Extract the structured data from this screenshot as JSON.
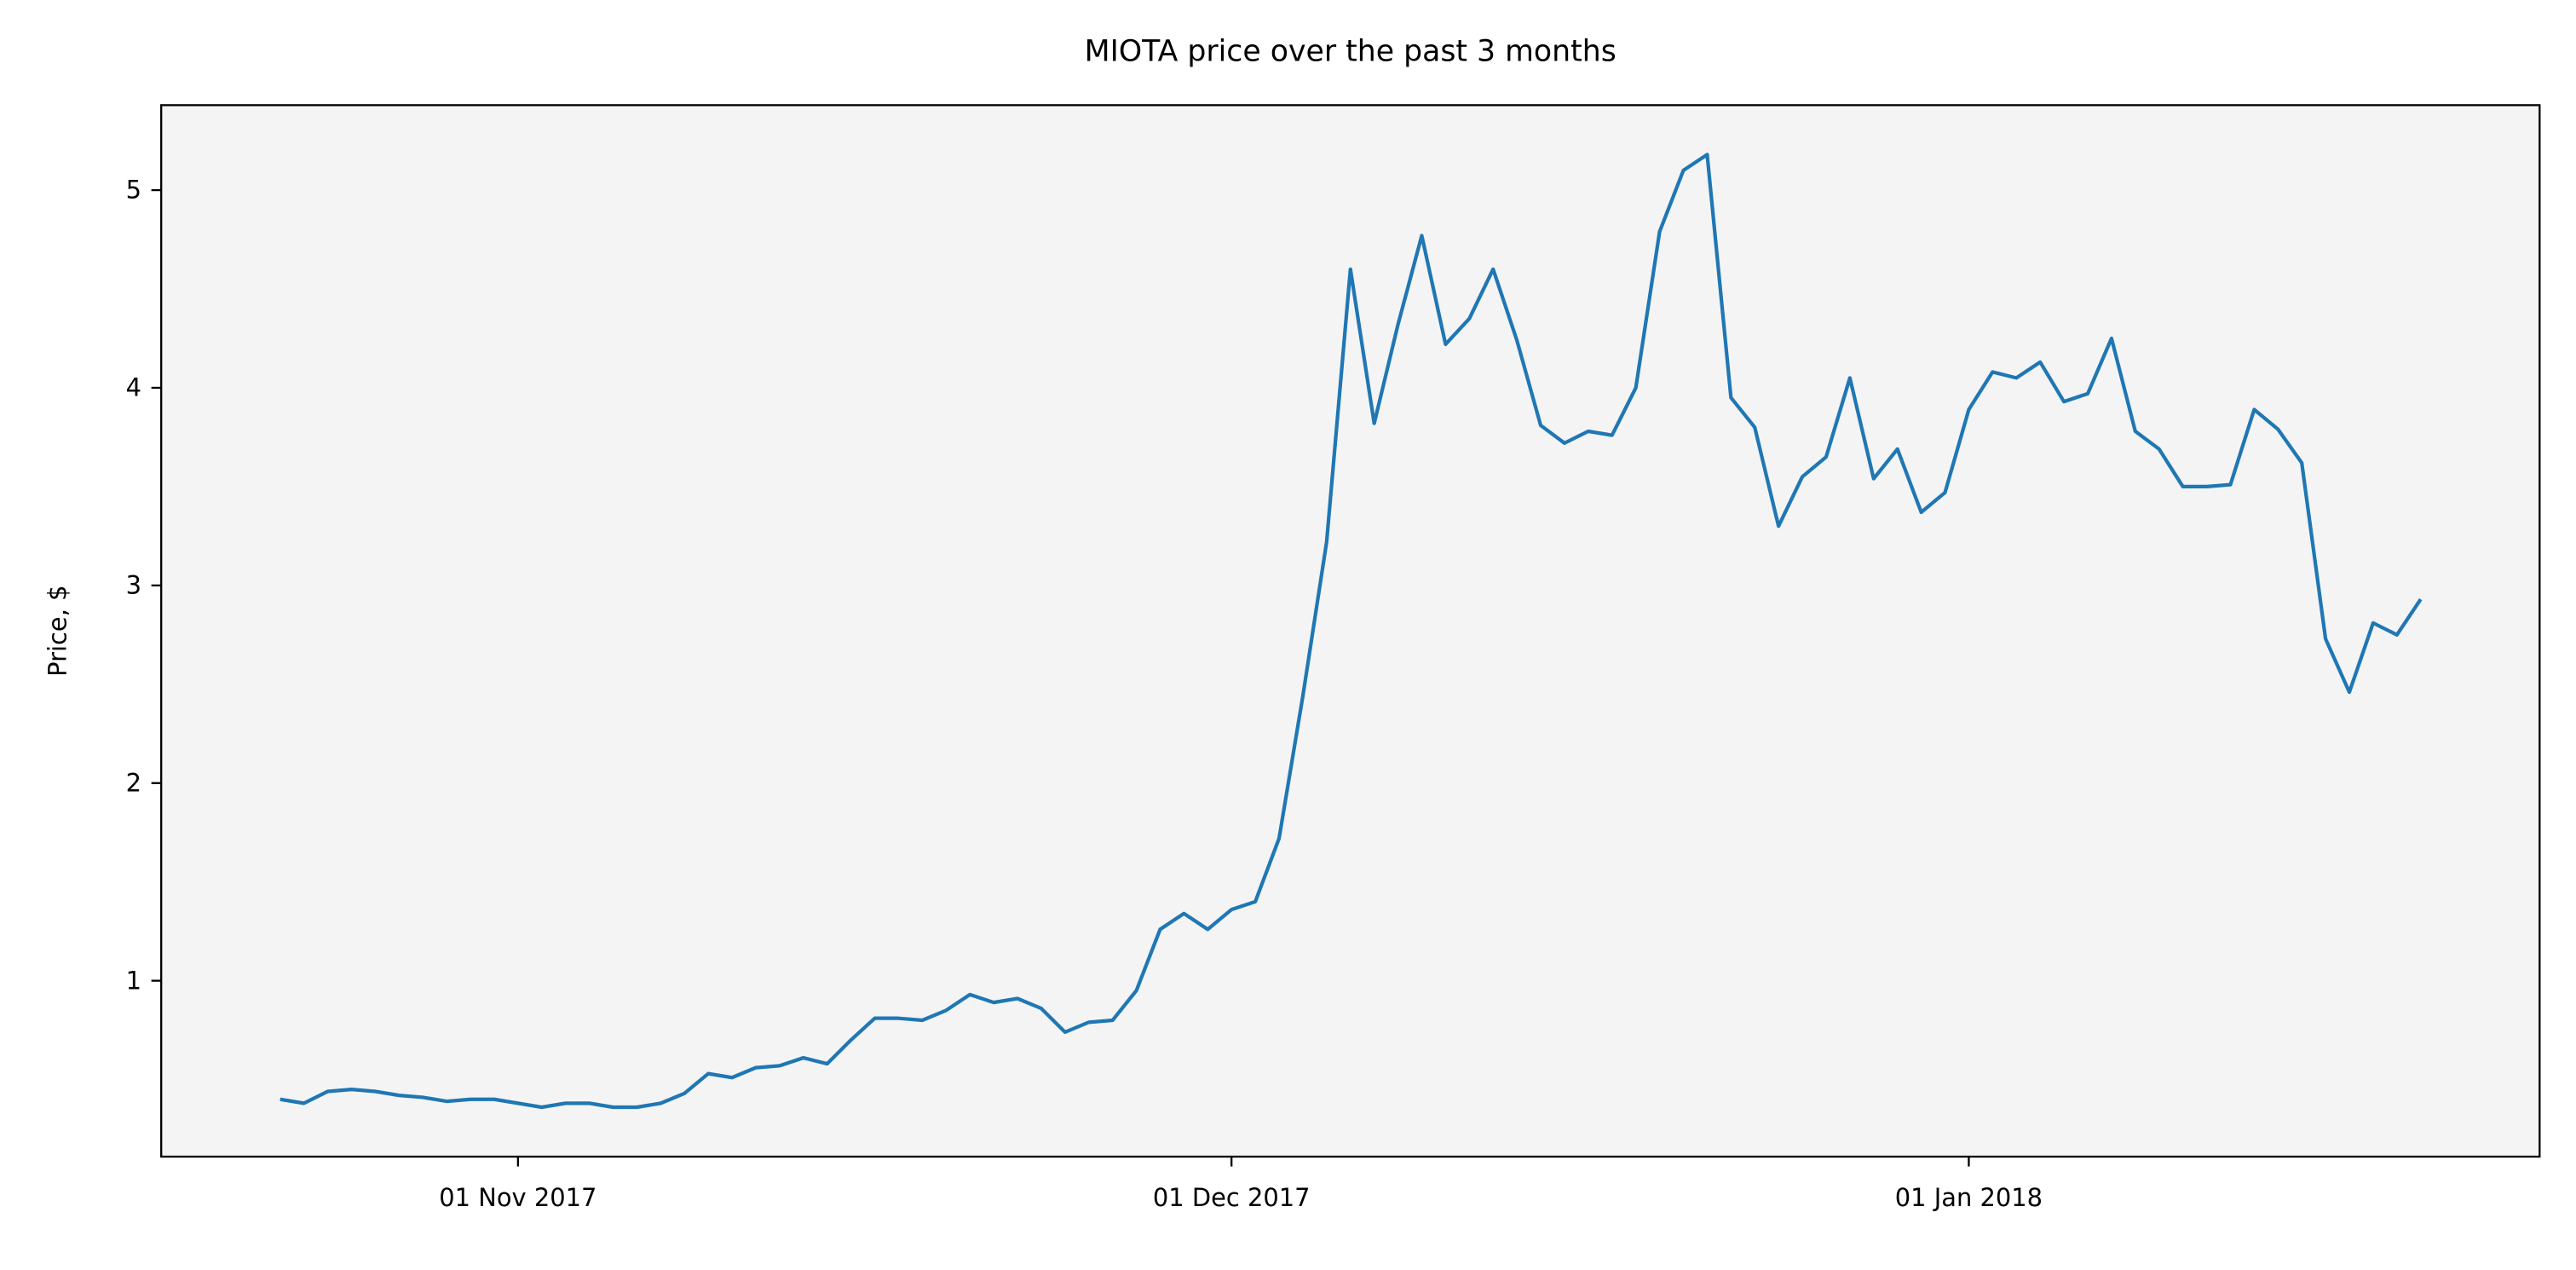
{
  "chart_data": {
    "type": "line",
    "title": "MIOTA price over the past 3 months",
    "y_label": "Price, $",
    "x": [
      "2017-10-22",
      "2017-10-23",
      "2017-10-24",
      "2017-10-25",
      "2017-10-26",
      "2017-10-27",
      "2017-10-28",
      "2017-10-29",
      "2017-10-30",
      "2017-10-31",
      "2017-11-01",
      "2017-11-02",
      "2017-11-03",
      "2017-11-04",
      "2017-11-05",
      "2017-11-06",
      "2017-11-07",
      "2017-11-08",
      "2017-11-09",
      "2017-11-10",
      "2017-11-11",
      "2017-11-12",
      "2017-11-13",
      "2017-11-14",
      "2017-11-15",
      "2017-11-16",
      "2017-11-17",
      "2017-11-18",
      "2017-11-19",
      "2017-11-20",
      "2017-11-21",
      "2017-11-22",
      "2017-11-23",
      "2017-11-24",
      "2017-11-25",
      "2017-11-26",
      "2017-11-27",
      "2017-11-28",
      "2017-11-29",
      "2017-11-30",
      "2017-12-01",
      "2017-12-02",
      "2017-12-03",
      "2017-12-04",
      "2017-12-05",
      "2017-12-06",
      "2017-12-07",
      "2017-12-08",
      "2017-12-09",
      "2017-12-10",
      "2017-12-11",
      "2017-12-12",
      "2017-12-13",
      "2017-12-14",
      "2017-12-15",
      "2017-12-16",
      "2017-12-17",
      "2017-12-18",
      "2017-12-19",
      "2017-12-20",
      "2017-12-21",
      "2017-12-22",
      "2017-12-23",
      "2017-12-24",
      "2017-12-25",
      "2017-12-26",
      "2017-12-27",
      "2017-12-28",
      "2017-12-29",
      "2017-12-30",
      "2017-12-31",
      "2018-01-01",
      "2018-01-02",
      "2018-01-03",
      "2018-01-04",
      "2018-01-05",
      "2018-01-06",
      "2018-01-07",
      "2018-01-08",
      "2018-01-09",
      "2018-01-10",
      "2018-01-11",
      "2018-01-12",
      "2018-01-13",
      "2018-01-14",
      "2018-01-15",
      "2018-01-16",
      "2018-01-17",
      "2018-01-18",
      "2018-01-19",
      "2018-01-20"
    ],
    "series": [
      {
        "name": "MIOTA",
        "color": "#1f77b4",
        "values": [
          0.4,
          0.38,
          0.44,
          0.45,
          0.44,
          0.42,
          0.41,
          0.39,
          0.4,
          0.4,
          0.38,
          0.36,
          0.38,
          0.38,
          0.36,
          0.36,
          0.38,
          0.43,
          0.53,
          0.51,
          0.56,
          0.57,
          0.61,
          0.58,
          0.7,
          0.81,
          0.81,
          0.8,
          0.85,
          0.93,
          0.89,
          0.91,
          0.86,
          0.74,
          0.79,
          0.8,
          0.95,
          1.26,
          1.34,
          1.26,
          1.36,
          1.4,
          1.72,
          2.44,
          3.22,
          4.6,
          3.82,
          4.32,
          4.77,
          4.22,
          4.35,
          4.6,
          4.24,
          3.81,
          3.72,
          3.78,
          3.76,
          4.0,
          4.79,
          5.1,
          5.18,
          3.95,
          3.8,
          3.3,
          3.55,
          3.65,
          4.05,
          3.54,
          3.69,
          3.37,
          3.47,
          3.89,
          4.08,
          4.05,
          4.13,
          3.93,
          3.97,
          4.25,
          3.78,
          3.69,
          3.5,
          3.5,
          3.51,
          3.89,
          3.79,
          3.62,
          2.73,
          2.46,
          2.81,
          2.75,
          2.93
        ]
      }
    ],
    "xlim": [
      "2017-10-17",
      "2018-01-25"
    ],
    "xticks": [
      {
        "value": "2017-11-01",
        "label": "01 Nov 2017"
      },
      {
        "value": "2017-12-01",
        "label": "01 Dec 2017"
      },
      {
        "value": "2018-01-01",
        "label": "01 Jan 2018"
      }
    ],
    "ylim": [
      0.11,
      5.43
    ],
    "yticks": [
      1,
      2,
      3,
      4,
      5
    ],
    "background": "#f4f4f4"
  }
}
